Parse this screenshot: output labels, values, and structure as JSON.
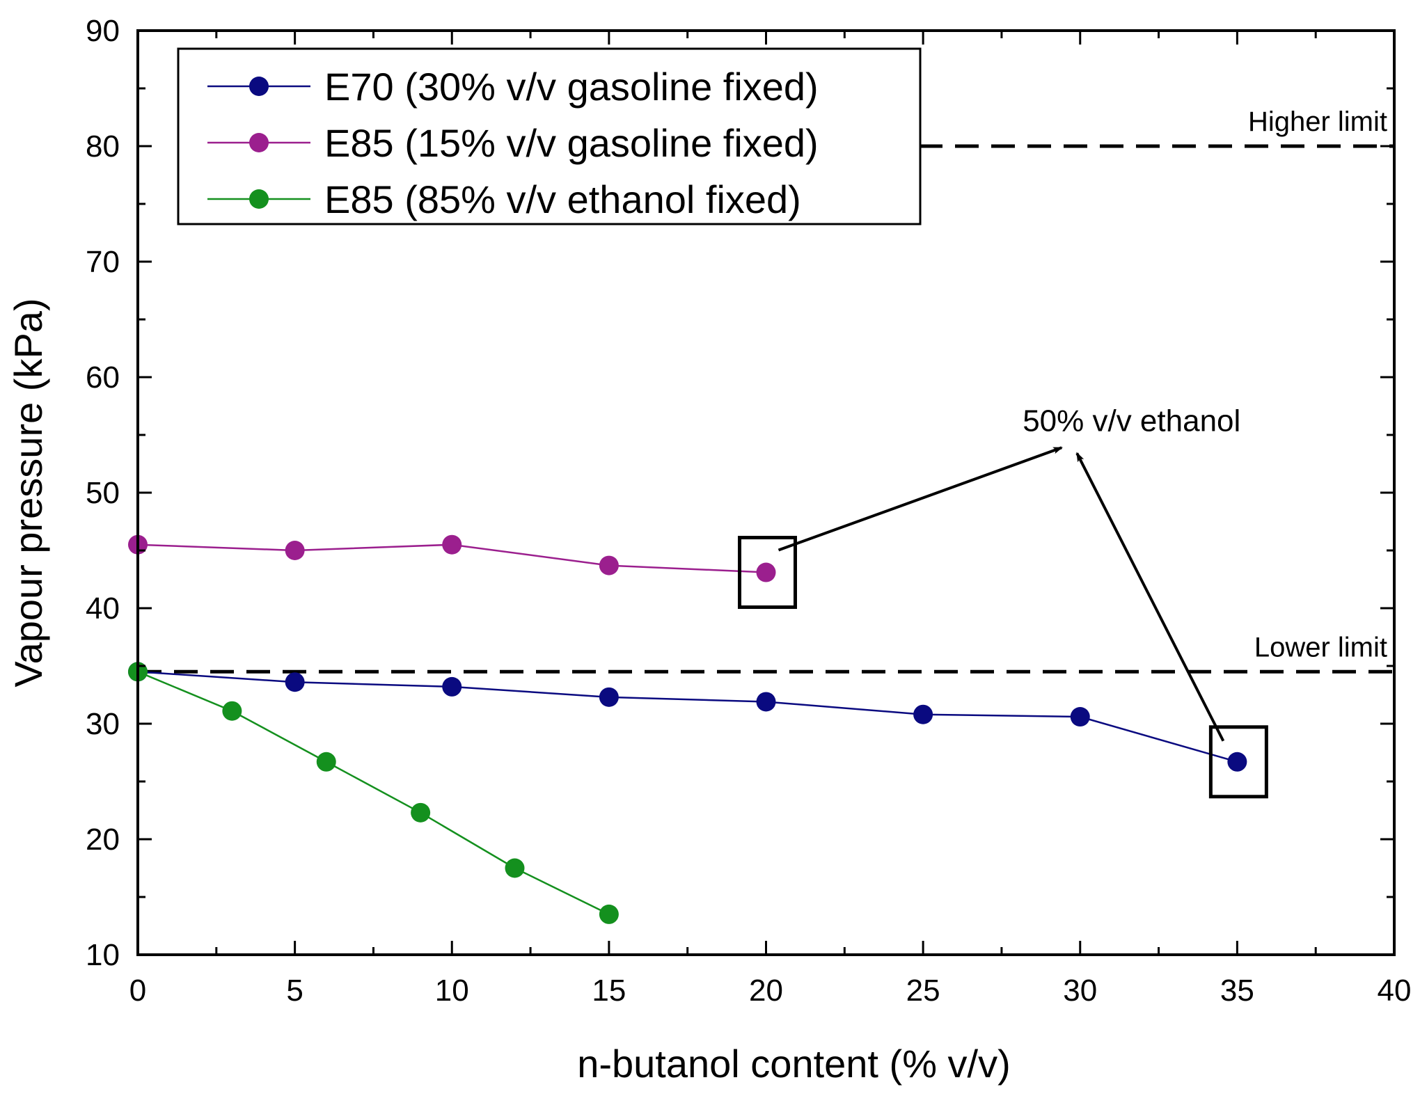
{
  "chart_data": {
    "type": "line",
    "xlabel": "n-butanol content (% v/v)",
    "ylabel": "Vapour pressure (kPa)",
    "xlim": [
      0,
      40
    ],
    "ylim": [
      10,
      90
    ],
    "x_ticks": [
      0,
      5,
      10,
      15,
      20,
      25,
      30,
      35,
      40
    ],
    "y_ticks": [
      10,
      20,
      30,
      40,
      50,
      60,
      70,
      80,
      90
    ],
    "series": [
      {
        "name": "E70 (30% v/v gasoline fixed)",
        "color": "#0a0a80",
        "x": [
          0,
          5,
          10,
          15,
          20,
          25,
          30,
          35
        ],
        "y": [
          34.5,
          33.6,
          33.2,
          32.3,
          31.9,
          30.8,
          30.6,
          26.7
        ]
      },
      {
        "name": "E85 (15% v/v gasoline fixed)",
        "color": "#9b1f8e",
        "x": [
          0,
          5,
          10,
          15,
          20
        ],
        "y": [
          45.5,
          45.0,
          45.5,
          43.7,
          43.1
        ]
      },
      {
        "name": "E85 (85% v/v ethanol fixed)",
        "color": "#14901e",
        "x": [
          0,
          3,
          6,
          9,
          12,
          15
        ],
        "y": [
          34.5,
          31.1,
          26.7,
          22.3,
          17.5,
          13.5
        ]
      }
    ],
    "reference_lines": [
      {
        "label": "Higher limit",
        "y": 80
      },
      {
        "label": "Lower limit",
        "y": 34.5
      }
    ],
    "annotation": {
      "text": "50% v/v ethanol",
      "anchor": {
        "x": 29.5,
        "y": 54.5
      },
      "targets": [
        {
          "x": 20,
          "y": 43.1
        },
        {
          "x": 35,
          "y": 26.7
        }
      ]
    },
    "legend_position": "top-left"
  }
}
